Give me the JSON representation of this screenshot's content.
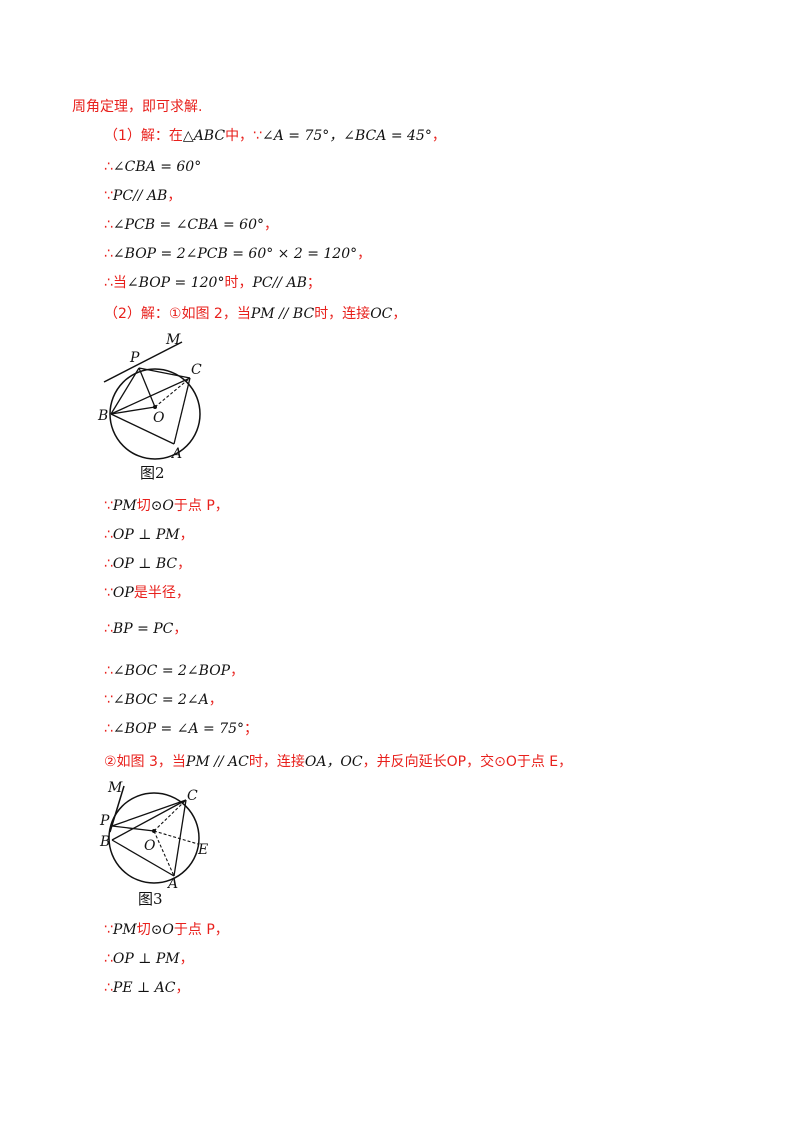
{
  "lines": [
    {
      "id": "l1",
      "pre": "周角定理，即可求解.",
      "math": "",
      "post": ""
    },
    {
      "id": "l2",
      "pre": "（1）解：在",
      "math": "△ABC",
      "mid": "中，∵",
      "math2": "∠A = 75°，∠BCA = 45°",
      "post": "，"
    },
    {
      "id": "l3",
      "pre": "∴",
      "math": "∠CBA = 60°",
      "post": ""
    },
    {
      "id": "l4",
      "pre": "∵",
      "math": "PC// AB",
      "post": "，"
    },
    {
      "id": "l5",
      "pre": "∴",
      "math": "∠PCB = ∠CBA = 60°",
      "post": "，"
    },
    {
      "id": "l6",
      "pre": "∴",
      "math": "∠BOP = 2∠PCB = 60° × 2 = 120°",
      "post": "，"
    },
    {
      "id": "l7",
      "pre": "∴当",
      "math": "∠BOP = 120°",
      "mid": "时，",
      "math2": "PC// AB",
      "post": "；"
    },
    {
      "id": "l8",
      "pre": "（2）解：①如图 2，当",
      "math": "PM // BC",
      "mid": "时，连接",
      "math2": "OC",
      "post": "，"
    },
    {
      "id": "l9",
      "pre": "∵",
      "math": "PM",
      "mid": "切",
      "math2": "⊙O",
      "post": "于点 P，"
    },
    {
      "id": "l10",
      "pre": "∴",
      "math": "OP ⊥ PM",
      "post": "，"
    },
    {
      "id": "l11",
      "pre": "∴",
      "math": "OP ⊥ BC",
      "post": "，"
    },
    {
      "id": "l12",
      "pre": "∵",
      "math": "OP",
      "post": "是半径，"
    },
    {
      "id": "l13",
      "pre": "∴",
      "math": "BP = PC",
      "post": "，"
    },
    {
      "id": "l14",
      "pre": "∴",
      "math": "∠BOC = 2∠BOP",
      "post": "，"
    },
    {
      "id": "l15",
      "pre": "∵",
      "math": "∠BOC = 2∠A",
      "post": "，"
    },
    {
      "id": "l16",
      "pre": "∴",
      "math": "∠BOP = ∠A = 75°",
      "post": "；"
    },
    {
      "id": "l17",
      "pre": "②如图 3，当",
      "math": "PM // AC",
      "mid": "时，连接",
      "math2": "OA，OC",
      "post": "，并反向延长OP，交⊙O于点 E，"
    },
    {
      "id": "l18",
      "pre": "∵",
      "math": "PM",
      "mid": "切",
      "math2": "⊙O",
      "post": "于点 P，"
    },
    {
      "id": "l19",
      "pre": "∴",
      "math": "OP ⊥ PM",
      "post": "，"
    },
    {
      "id": "l20",
      "pre": "∴",
      "math": "PE ⊥ AC",
      "post": "，"
    }
  ],
  "figure2": {
    "caption": "图2",
    "labels": {
      "M": "M",
      "P": "P",
      "C": "C",
      "B": "B",
      "O": "O",
      "A": "A"
    }
  },
  "figure3": {
    "caption": "图3",
    "labels": {
      "M": "M",
      "P": "P",
      "C": "C",
      "B": "B",
      "O": "O",
      "E": "E",
      "A": "A"
    }
  },
  "colors": {
    "text_red": "#e8201c",
    "math_black": "#111111"
  }
}
